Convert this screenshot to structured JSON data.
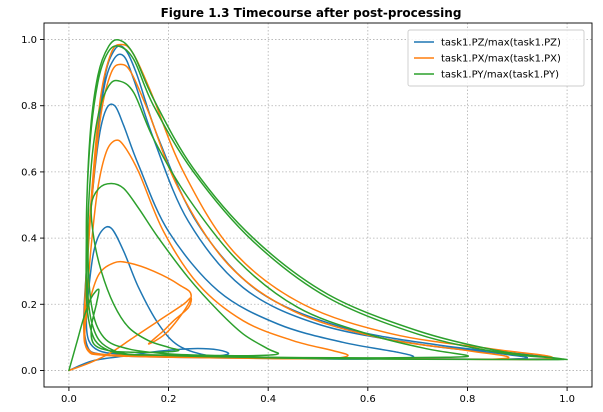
{
  "chart_data": {
    "type": "line",
    "title": "Figure 1.3 Timecourse after post-processing",
    "xlabel": "",
    "ylabel": "",
    "xlim": [
      -0.05,
      1.05
    ],
    "ylim": [
      -0.05,
      1.05
    ],
    "xticks": [
      {
        "value": 0.0,
        "label": "0.0"
      },
      {
        "value": 0.2,
        "label": "0.2"
      },
      {
        "value": 0.4,
        "label": "0.4"
      },
      {
        "value": 0.6,
        "label": "0.6"
      },
      {
        "value": 0.8,
        "label": "0.8"
      },
      {
        "value": 1.0,
        "label": "1.0"
      }
    ],
    "yticks": [
      {
        "value": 0.0,
        "label": "0.0"
      },
      {
        "value": 0.2,
        "label": "0.2"
      },
      {
        "value": 0.4,
        "label": "0.4"
      },
      {
        "value": 0.6,
        "label": "0.6"
      },
      {
        "value": 0.8,
        "label": "0.8"
      },
      {
        "value": 1.0,
        "label": "1.0"
      }
    ],
    "grid": true,
    "legend_position": "top-right",
    "series": [
      {
        "name": "task1.PZ/max(task1.PZ)",
        "color": "#1f77b4",
        "points": [
          [
            0.0,
            0.0
          ],
          [
            0.05,
            0.03
          ],
          [
            0.12,
            0.045
          ],
          [
            0.18,
            0.058
          ],
          [
            0.25,
            0.066
          ],
          [
            0.3,
            0.062
          ],
          [
            0.32,
            0.05
          ],
          [
            0.28,
            0.045
          ],
          [
            0.22,
            0.075
          ],
          [
            0.18,
            0.14
          ],
          [
            0.14,
            0.25
          ],
          [
            0.11,
            0.36
          ],
          [
            0.085,
            0.43
          ],
          [
            0.065,
            0.42
          ],
          [
            0.05,
            0.36
          ],
          [
            0.04,
            0.25
          ],
          [
            0.035,
            0.15
          ],
          [
            0.04,
            0.09
          ],
          [
            0.06,
            0.06
          ],
          [
            0.1,
            0.05
          ],
          [
            0.2,
            0.045
          ],
          [
            0.35,
            0.04
          ],
          [
            0.5,
            0.035
          ],
          [
            0.62,
            0.035
          ],
          [
            0.69,
            0.04
          ],
          [
            0.66,
            0.055
          ],
          [
            0.55,
            0.085
          ],
          [
            0.42,
            0.14
          ],
          [
            0.3,
            0.24
          ],
          [
            0.2,
            0.42
          ],
          [
            0.14,
            0.62
          ],
          [
            0.11,
            0.74
          ],
          [
            0.092,
            0.8
          ],
          [
            0.075,
            0.79
          ],
          [
            0.06,
            0.7
          ],
          [
            0.045,
            0.5
          ],
          [
            0.035,
            0.3
          ],
          [
            0.03,
            0.15
          ],
          [
            0.038,
            0.07
          ],
          [
            0.06,
            0.05
          ],
          [
            0.12,
            0.043
          ],
          [
            0.3,
            0.038
          ],
          [
            0.5,
            0.035
          ],
          [
            0.7,
            0.035
          ],
          [
            0.86,
            0.034
          ],
          [
            0.92,
            0.038
          ],
          [
            0.87,
            0.05
          ],
          [
            0.7,
            0.08
          ],
          [
            0.5,
            0.14
          ],
          [
            0.35,
            0.25
          ],
          [
            0.24,
            0.45
          ],
          [
            0.17,
            0.7
          ],
          [
            0.13,
            0.88
          ],
          [
            0.11,
            0.95
          ],
          [
            0.09,
            0.94
          ],
          [
            0.07,
            0.85
          ],
          [
            0.05,
            0.6
          ],
          [
            0.035,
            0.3
          ],
          [
            0.03,
            0.14
          ],
          [
            0.038,
            0.065
          ],
          [
            0.07,
            0.048
          ],
          [
            0.15,
            0.042
          ],
          [
            0.35,
            0.038
          ],
          [
            0.6,
            0.036
          ],
          [
            0.85,
            0.034
          ],
          [
            0.97,
            0.036
          ],
          [
            0.92,
            0.048
          ],
          [
            0.75,
            0.075
          ],
          [
            0.55,
            0.13
          ],
          [
            0.38,
            0.24
          ],
          [
            0.26,
            0.44
          ],
          [
            0.18,
            0.7
          ],
          [
            0.135,
            0.9
          ],
          [
            0.11,
            0.975
          ],
          [
            0.09,
            0.965
          ],
          [
            0.07,
            0.87
          ],
          [
            0.05,
            0.6
          ],
          [
            0.035,
            0.3
          ],
          [
            0.03,
            0.13
          ]
        ]
      },
      {
        "name": "task1.PX/max(task1.PX)",
        "color": "#ff7f0e",
        "points": [
          [
            0.0,
            0.0
          ],
          [
            0.04,
            0.022
          ],
          [
            0.08,
            0.05
          ],
          [
            0.13,
            0.1
          ],
          [
            0.18,
            0.15
          ],
          [
            0.23,
            0.2
          ],
          [
            0.245,
            0.22
          ],
          [
            0.24,
            0.19
          ],
          [
            0.21,
            0.15
          ],
          [
            0.19,
            0.12
          ],
          [
            0.16,
            0.08
          ],
          [
            0.2,
            0.12
          ],
          [
            0.245,
            0.22
          ],
          [
            0.22,
            0.26
          ],
          [
            0.17,
            0.3
          ],
          [
            0.12,
            0.325
          ],
          [
            0.09,
            0.325
          ],
          [
            0.06,
            0.29
          ],
          [
            0.04,
            0.2
          ],
          [
            0.032,
            0.12
          ],
          [
            0.036,
            0.065
          ],
          [
            0.06,
            0.05
          ],
          [
            0.12,
            0.045
          ],
          [
            0.25,
            0.04
          ],
          [
            0.4,
            0.036
          ],
          [
            0.52,
            0.036
          ],
          [
            0.56,
            0.045
          ],
          [
            0.53,
            0.06
          ],
          [
            0.45,
            0.09
          ],
          [
            0.35,
            0.15
          ],
          [
            0.26,
            0.26
          ],
          [
            0.19,
            0.42
          ],
          [
            0.14,
            0.6
          ],
          [
            0.11,
            0.68
          ],
          [
            0.093,
            0.695
          ],
          [
            0.075,
            0.66
          ],
          [
            0.058,
            0.55
          ],
          [
            0.045,
            0.38
          ],
          [
            0.035,
            0.2
          ],
          [
            0.03,
            0.12
          ],
          [
            0.038,
            0.06
          ],
          [
            0.07,
            0.046
          ],
          [
            0.2,
            0.04
          ],
          [
            0.45,
            0.036
          ],
          [
            0.7,
            0.035
          ],
          [
            0.85,
            0.034
          ],
          [
            0.88,
            0.042
          ],
          [
            0.8,
            0.06
          ],
          [
            0.62,
            0.1
          ],
          [
            0.45,
            0.18
          ],
          [
            0.32,
            0.32
          ],
          [
            0.22,
            0.55
          ],
          [
            0.16,
            0.78
          ],
          [
            0.125,
            0.9
          ],
          [
            0.104,
            0.925
          ],
          [
            0.085,
            0.9
          ],
          [
            0.065,
            0.78
          ],
          [
            0.048,
            0.55
          ],
          [
            0.036,
            0.3
          ],
          [
            0.03,
            0.13
          ],
          [
            0.038,
            0.065
          ],
          [
            0.08,
            0.046
          ],
          [
            0.25,
            0.04
          ],
          [
            0.55,
            0.036
          ],
          [
            0.8,
            0.034
          ],
          [
            0.95,
            0.034
          ],
          [
            0.96,
            0.044
          ],
          [
            0.85,
            0.065
          ],
          [
            0.65,
            0.11
          ],
          [
            0.47,
            0.2
          ],
          [
            0.33,
            0.36
          ],
          [
            0.23,
            0.6
          ],
          [
            0.165,
            0.84
          ],
          [
            0.128,
            0.96
          ],
          [
            0.105,
            0.985
          ],
          [
            0.085,
            0.96
          ],
          [
            0.064,
            0.83
          ],
          [
            0.048,
            0.58
          ],
          [
            0.035,
            0.3
          ],
          [
            0.03,
            0.13
          ]
        ]
      },
      {
        "name": "task1.PY/max(task1.PY)",
        "color": "#2ca02c",
        "points": [
          [
            0.0,
            0.0
          ],
          [
            0.015,
            0.08
          ],
          [
            0.03,
            0.16
          ],
          [
            0.045,
            0.22
          ],
          [
            0.06,
            0.245
          ],
          [
            0.055,
            0.2
          ],
          [
            0.045,
            0.13
          ],
          [
            0.05,
            0.08
          ],
          [
            0.08,
            0.06
          ],
          [
            0.13,
            0.055
          ],
          [
            0.18,
            0.055
          ],
          [
            0.22,
            0.06
          ],
          [
            0.2,
            0.07
          ],
          [
            0.16,
            0.09
          ],
          [
            0.12,
            0.13
          ],
          [
            0.09,
            0.2
          ],
          [
            0.065,
            0.3
          ],
          [
            0.05,
            0.4
          ],
          [
            0.045,
            0.5
          ],
          [
            0.06,
            0.55
          ],
          [
            0.085,
            0.565
          ],
          [
            0.11,
            0.55
          ],
          [
            0.14,
            0.49
          ],
          [
            0.18,
            0.4
          ],
          [
            0.24,
            0.28
          ],
          [
            0.3,
            0.18
          ],
          [
            0.35,
            0.11
          ],
          [
            0.4,
            0.065
          ],
          [
            0.42,
            0.05
          ],
          [
            0.38,
            0.045
          ],
          [
            0.3,
            0.045
          ],
          [
            0.2,
            0.05
          ],
          [
            0.12,
            0.065
          ],
          [
            0.07,
            0.1
          ],
          [
            0.045,
            0.2
          ],
          [
            0.038,
            0.4
          ],
          [
            0.045,
            0.62
          ],
          [
            0.06,
            0.78
          ],
          [
            0.08,
            0.86
          ],
          [
            0.1,
            0.875
          ],
          [
            0.13,
            0.84
          ],
          [
            0.17,
            0.7
          ],
          [
            0.24,
            0.52
          ],
          [
            0.34,
            0.33
          ],
          [
            0.46,
            0.19
          ],
          [
            0.6,
            0.11
          ],
          [
            0.72,
            0.065
          ],
          [
            0.8,
            0.045
          ],
          [
            0.76,
            0.04
          ],
          [
            0.6,
            0.038
          ],
          [
            0.4,
            0.04
          ],
          [
            0.2,
            0.046
          ],
          [
            0.09,
            0.06
          ],
          [
            0.045,
            0.15
          ],
          [
            0.035,
            0.4
          ],
          [
            0.042,
            0.68
          ],
          [
            0.058,
            0.87
          ],
          [
            0.078,
            0.96
          ],
          [
            0.1,
            0.98
          ],
          [
            0.13,
            0.94
          ],
          [
            0.17,
            0.8
          ],
          [
            0.25,
            0.6
          ],
          [
            0.37,
            0.39
          ],
          [
            0.52,
            0.22
          ],
          [
            0.7,
            0.11
          ],
          [
            0.86,
            0.055
          ],
          [
            0.97,
            0.038
          ],
          [
            0.99,
            0.033
          ],
          [
            0.9,
            0.033
          ],
          [
            0.7,
            0.034
          ],
          [
            0.45,
            0.037
          ],
          [
            0.2,
            0.045
          ],
          [
            0.08,
            0.06
          ],
          [
            0.04,
            0.15
          ],
          [
            0.035,
            0.4
          ],
          [
            0.042,
            0.7
          ],
          [
            0.058,
            0.89
          ],
          [
            0.08,
            0.98
          ],
          [
            0.102,
            0.998
          ],
          [
            0.13,
            0.955
          ],
          [
            0.17,
            0.82
          ],
          [
            0.25,
            0.61
          ],
          [
            0.37,
            0.4
          ],
          [
            0.52,
            0.23
          ],
          [
            0.7,
            0.12
          ],
          [
            0.86,
            0.06
          ],
          [
            0.98,
            0.037
          ],
          [
            1.0,
            0.033
          ]
        ]
      }
    ]
  }
}
